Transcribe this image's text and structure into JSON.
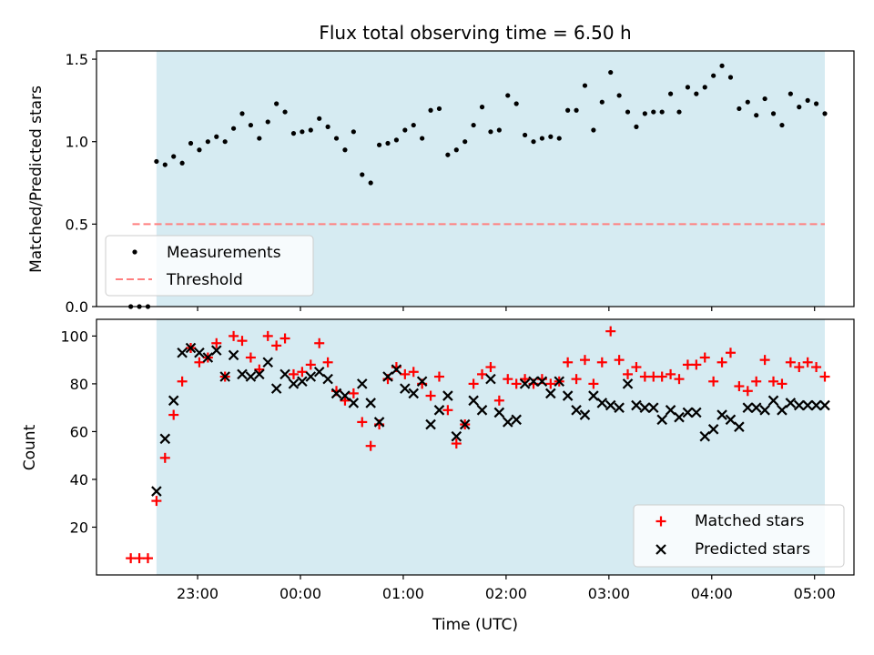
{
  "figure": {
    "title": "Flux total observing time = 6.50 h"
  },
  "colors": {
    "shade": "#add8e6",
    "measurement": "#000000",
    "threshold": "#ff7f7f",
    "matched": "#ff0000",
    "predicted": "#000000"
  },
  "chart_data": [
    {
      "type": "scatter",
      "panel": "top",
      "ylabel": "Matched/Predicted stars",
      "ylim": [
        0,
        1.55
      ],
      "xlim": [
        "22:01",
        "05:23"
      ],
      "yticks": [
        "0.0",
        "0.5",
        "1.0",
        "1.5"
      ],
      "ytick_values": [
        0,
        0.5,
        1.0,
        1.5
      ],
      "observing_window": [
        "22:36",
        "05:06"
      ],
      "threshold": {
        "name": "Threshold",
        "y": 0.5,
        "x": [
          "22:22",
          "05:06"
        ]
      },
      "legend": {
        "placement": "lower-left",
        "entries": [
          "Measurements",
          "Threshold"
        ]
      },
      "series": [
        {
          "name": "Measurements",
          "x": [
            "22:21",
            "22:26",
            "22:31",
            "22:36",
            "22:41",
            "22:46",
            "22:51",
            "22:56",
            "23:01",
            "23:06",
            "23:11",
            "23:16",
            "23:21",
            "23:26",
            "23:31",
            "23:36",
            "23:41",
            "23:46",
            "23:51",
            "23:56",
            "00:01",
            "00:06",
            "00:11",
            "00:16",
            "00:21",
            "00:26",
            "00:31",
            "00:36",
            "00:41",
            "00:46",
            "00:51",
            "00:56",
            "01:01",
            "01:06",
            "01:11",
            "01:16",
            "01:21",
            "01:26",
            "01:31",
            "01:36",
            "01:41",
            "01:46",
            "01:51",
            "01:56",
            "02:01",
            "02:06",
            "02:11",
            "02:16",
            "02:21",
            "02:26",
            "02:31",
            "02:36",
            "02:41",
            "02:46",
            "02:51",
            "02:56",
            "03:01",
            "03:06",
            "03:11",
            "03:16",
            "03:21",
            "03:26",
            "03:31",
            "03:36",
            "03:41",
            "03:46",
            "03:51",
            "03:56",
            "04:01",
            "04:06",
            "04:11",
            "04:16",
            "04:21",
            "04:26",
            "04:31",
            "04:36",
            "04:41",
            "04:46",
            "04:51",
            "04:56",
            "05:01",
            "05:06"
          ],
          "y": [
            0.0,
            0.0,
            0.0,
            0.88,
            0.86,
            0.91,
            0.87,
            0.99,
            0.95,
            1.0,
            1.03,
            1.0,
            1.08,
            1.17,
            1.1,
            1.02,
            1.12,
            1.23,
            1.18,
            1.05,
            1.06,
            1.07,
            1.14,
            1.09,
            1.02,
            0.95,
            1.06,
            0.8,
            0.75,
            0.98,
            0.99,
            1.01,
            1.07,
            1.1,
            1.02,
            1.19,
            1.2,
            0.92,
            0.95,
            1.0,
            1.1,
            1.21,
            1.06,
            1.07,
            1.28,
            1.23,
            1.04,
            1.0,
            1.02,
            1.03,
            1.02,
            1.19,
            1.19,
            1.34,
            1.07,
            1.24,
            1.42,
            1.28,
            1.18,
            1.09,
            1.17,
            1.18,
            1.18,
            1.29,
            1.18,
            1.33,
            1.29,
            1.33,
            1.4,
            1.46,
            1.39,
            1.2,
            1.24,
            1.16,
            1.26,
            1.17,
            1.1,
            1.29,
            1.21,
            1.25,
            1.23,
            1.17
          ]
        }
      ]
    },
    {
      "type": "scatter",
      "panel": "bottom",
      "ylabel": "Count",
      "xlabel": "Time (UTC)",
      "ylim": [
        0,
        107
      ],
      "xlim": [
        "22:01",
        "05:23"
      ],
      "yticks": [
        "20",
        "40",
        "60",
        "80",
        "100"
      ],
      "ytick_values": [
        20,
        40,
        60,
        80,
        100
      ],
      "xticks": [
        "23:00",
        "00:00",
        "01:00",
        "02:00",
        "03:00",
        "04:00",
        "05:00"
      ],
      "observing_window": [
        "22:36",
        "05:06"
      ],
      "legend": {
        "placement": "lower-right",
        "entries": [
          "Matched stars",
          "Predicted stars"
        ]
      },
      "series": [
        {
          "name": "Matched stars",
          "marker": "plus",
          "x": [
            "22:21",
            "22:26",
            "22:31",
            "22:36",
            "22:41",
            "22:46",
            "22:51",
            "22:56",
            "23:01",
            "23:06",
            "23:11",
            "23:16",
            "23:21",
            "23:26",
            "23:31",
            "23:36",
            "23:41",
            "23:46",
            "23:51",
            "23:56",
            "00:01",
            "00:06",
            "00:11",
            "00:16",
            "00:21",
            "00:26",
            "00:31",
            "00:36",
            "00:41",
            "00:46",
            "00:51",
            "00:56",
            "01:01",
            "01:06",
            "01:11",
            "01:16",
            "01:21",
            "01:26",
            "01:31",
            "01:36",
            "01:41",
            "01:46",
            "01:51",
            "01:56",
            "02:01",
            "02:06",
            "02:11",
            "02:16",
            "02:21",
            "02:26",
            "02:31",
            "02:36",
            "02:41",
            "02:46",
            "02:51",
            "02:56",
            "03:01",
            "03:06",
            "03:11",
            "03:16",
            "03:21",
            "03:26",
            "03:31",
            "03:36",
            "03:41",
            "03:46",
            "03:51",
            "03:56",
            "04:01",
            "04:06",
            "04:11",
            "04:16",
            "04:21",
            "04:26",
            "04:31",
            "04:36",
            "04:41",
            "04:46",
            "04:51",
            "04:56",
            "05:01",
            "05:06"
          ],
          "y": [
            7,
            7,
            7,
            31,
            49,
            67,
            81,
            95,
            89,
            91,
            97,
            83,
            100,
            98,
            91,
            86,
            100,
            96,
            99,
            84,
            85,
            88,
            97,
            89,
            77,
            73,
            76,
            64,
            54,
            63,
            82,
            87,
            84,
            85,
            80,
            75,
            83,
            69,
            55,
            63,
            80,
            84,
            87,
            73,
            82,
            80,
            82,
            80,
            82,
            80,
            81,
            89,
            82,
            90,
            80,
            89,
            102,
            90,
            84,
            87,
            83,
            83,
            83,
            84,
            82,
            88,
            88,
            91,
            81,
            89,
            93,
            79,
            77,
            81,
            90,
            81,
            80,
            89,
            87,
            89,
            87,
            83
          ]
        },
        {
          "name": "Predicted stars",
          "marker": "x",
          "x": [
            "22:36",
            "22:41",
            "22:46",
            "22:51",
            "22:56",
            "23:01",
            "23:06",
            "23:11",
            "23:16",
            "23:21",
            "23:26",
            "23:31",
            "23:36",
            "23:41",
            "23:46",
            "23:51",
            "23:56",
            "00:01",
            "00:06",
            "00:11",
            "00:16",
            "00:21",
            "00:26",
            "00:31",
            "00:36",
            "00:41",
            "00:46",
            "00:51",
            "00:56",
            "01:01",
            "01:06",
            "01:11",
            "01:16",
            "01:21",
            "01:26",
            "01:31",
            "01:36",
            "01:41",
            "01:46",
            "01:51",
            "01:56",
            "02:01",
            "02:06",
            "02:11",
            "02:16",
            "02:21",
            "02:26",
            "02:31",
            "02:36",
            "02:41",
            "02:46",
            "02:51",
            "02:56",
            "03:01",
            "03:06",
            "03:11",
            "03:16",
            "03:21",
            "03:26",
            "03:31",
            "03:36",
            "03:41",
            "03:46",
            "03:51",
            "03:56",
            "04:01",
            "04:06",
            "04:11",
            "04:16",
            "04:21",
            "04:26",
            "04:31",
            "04:36",
            "04:41",
            "04:46",
            "04:51",
            "04:56",
            "05:01",
            "05:06"
          ],
          "y": [
            35,
            57,
            73,
            93,
            95,
            93,
            91,
            94,
            83,
            92,
            84,
            83,
            84,
            89,
            78,
            84,
            80,
            81,
            83,
            85,
            82,
            76,
            75,
            72,
            80,
            72,
            64,
            83,
            86,
            78,
            76,
            81,
            63,
            69,
            75,
            58,
            63,
            73,
            69,
            82,
            68,
            64,
            65,
            80,
            81,
            81,
            76,
            81,
            75,
            69,
            67,
            75,
            72,
            71,
            70,
            80,
            71,
            70,
            70,
            65,
            69,
            66,
            68,
            68,
            58,
            61,
            67,
            65,
            62,
            70,
            70,
            69,
            73,
            69,
            72,
            71,
            71,
            71,
            71
          ]
        }
      ]
    }
  ]
}
